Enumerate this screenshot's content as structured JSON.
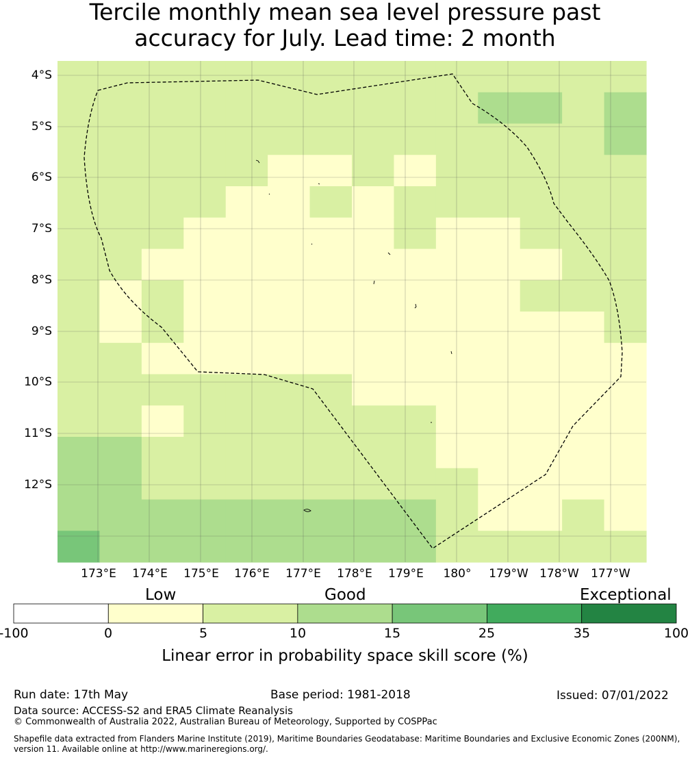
{
  "title": {
    "line1": "Tercile monthly mean sea level pressure past",
    "line2": "accuracy for July. Lead time: 2 month"
  },
  "map": {
    "lat_ticks": [
      "4°S",
      "5°S",
      "6°S",
      "7°S",
      "8°S",
      "9°S",
      "10°S",
      "11°S",
      "12°S"
    ],
    "lon_ticks": [
      "173°E",
      "174°E",
      "175°E",
      "176°E",
      "177°E",
      "178°E",
      "179°E",
      "180°",
      "179°W",
      "178°W",
      "177°W"
    ],
    "lat_range_deg_S": [
      3.7,
      13.4
    ],
    "lon_range_deg_E": [
      172.2,
      183.6
    ],
    "skill_class_grid": [
      [
        2,
        2,
        2,
        2,
        2,
        2,
        2,
        2,
        2,
        2,
        2,
        2,
        2,
        2
      ],
      [
        2,
        2,
        2,
        2,
        2,
        2,
        2,
        2,
        2,
        2,
        3,
        3,
        2,
        3
      ],
      [
        2,
        2,
        2,
        2,
        2,
        2,
        2,
        2,
        2,
        2,
        2,
        2,
        2,
        3
      ],
      [
        2,
        2,
        2,
        2,
        2,
        1,
        1,
        2,
        1,
        2,
        2,
        2,
        2,
        2
      ],
      [
        2,
        2,
        2,
        2,
        1,
        1,
        2,
        1,
        2,
        2,
        2,
        2,
        2,
        2
      ],
      [
        2,
        2,
        2,
        1,
        1,
        1,
        1,
        1,
        2,
        1,
        1,
        2,
        2,
        2
      ],
      [
        2,
        2,
        1,
        1,
        1,
        1,
        1,
        1,
        1,
        1,
        1,
        1,
        2,
        2
      ],
      [
        2,
        1,
        2,
        1,
        1,
        1,
        1,
        1,
        1,
        1,
        1,
        2,
        2,
        2
      ],
      [
        2,
        1,
        2,
        1,
        1,
        1,
        1,
        1,
        1,
        1,
        1,
        1,
        1,
        2
      ],
      [
        2,
        2,
        1,
        1,
        1,
        1,
        1,
        1,
        1,
        1,
        1,
        1,
        1,
        1
      ],
      [
        2,
        2,
        2,
        2,
        2,
        2,
        2,
        1,
        1,
        1,
        1,
        1,
        1,
        1
      ],
      [
        2,
        2,
        1,
        2,
        2,
        2,
        2,
        2,
        2,
        1,
        1,
        1,
        1,
        1
      ],
      [
        3,
        3,
        2,
        2,
        2,
        2,
        2,
        2,
        2,
        1,
        1,
        1,
        1,
        1
      ],
      [
        3,
        3,
        2,
        2,
        2,
        2,
        2,
        2,
        2,
        2,
        1,
        1,
        1,
        1
      ],
      [
        3,
        3,
        3,
        3,
        3,
        3,
        3,
        3,
        3,
        2,
        1,
        1,
        2,
        1
      ],
      [
        4,
        3,
        3,
        3,
        3,
        3,
        3,
        3,
        3,
        2,
        2,
        2,
        2,
        2
      ]
    ],
    "colors": {
      "background": "#ffffff",
      "gridline": "#555555",
      "eez_boundary": "#000000"
    }
  },
  "colorbar": {
    "categories": [
      "Low",
      "Good",
      "Exceptional"
    ],
    "bins": [
      {
        "from": -100,
        "to": 0,
        "color": "#ffffff"
      },
      {
        "from": 0,
        "to": 5,
        "color": "#ffffcc"
      },
      {
        "from": 5,
        "to": 10,
        "color": "#d9f0a3"
      },
      {
        "from": 10,
        "to": 15,
        "color": "#addd8e"
      },
      {
        "from": 15,
        "to": 25,
        "color": "#78c679"
      },
      {
        "from": 25,
        "to": 35,
        "color": "#41ab5d"
      },
      {
        "from": 35,
        "to": 100,
        "color": "#238443"
      }
    ],
    "tick_labels": [
      "-100",
      "0",
      "5",
      "10",
      "15",
      "25",
      "35",
      "100"
    ],
    "label": "Linear error in probability space skill score (%)"
  },
  "footer": {
    "run_date": "Run date: 17th May",
    "base_period": "Base period: 1981-2018",
    "issued": "Issued: 07/01/2022",
    "data_source": "Data source: ACCESS-S2 and ERA5 Climate Reanalysis",
    "copyright": "© Commonwealth of Australia 2022, Australian Bureau of Meteorology, Supported by COSPPac",
    "shapefile_note": "Shapefile data extracted from Flanders Marine Institute (2019), Maritime Boundaries Geodatabase: Maritime Boundaries and Exclusive Economic Zones (200NM), version 11. Available online at http://www.marineregions.org/."
  }
}
